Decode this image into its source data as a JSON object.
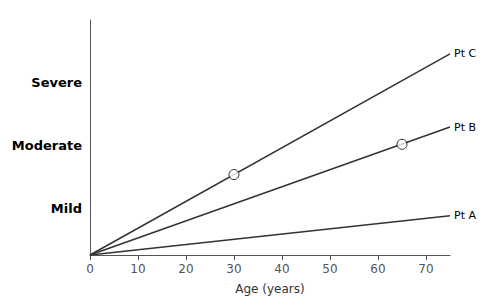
{
  "chart_data": {
    "type": "line",
    "xlabel": "Age (years)",
    "xlim": [
      0,
      75
    ],
    "xticks": [
      0,
      10,
      20,
      30,
      40,
      50,
      60,
      70
    ],
    "ylim": [
      0,
      4.5
    ],
    "yticks": [
      {
        "value": 0.9,
        "label": "Mild"
      },
      {
        "value": 2.1,
        "label": "Moderate"
      },
      {
        "value": 3.3,
        "label": "Severe"
      }
    ],
    "grid": false,
    "series": [
      {
        "name": "Pt A",
        "color": "#333333",
        "x": [
          0,
          75
        ],
        "values": [
          0,
          0.75
        ]
      },
      {
        "name": "Pt B",
        "color": "#333333",
        "x": [
          0,
          75
        ],
        "values": [
          0,
          2.45
        ],
        "circle": {
          "x": 65,
          "y": 2.12
        }
      },
      {
        "name": "Pt C",
        "color": "#333333",
        "x": [
          0,
          75
        ],
        "values": [
          0,
          3.85
        ],
        "circle": {
          "x": 30,
          "y": 1.54
        }
      }
    ]
  }
}
